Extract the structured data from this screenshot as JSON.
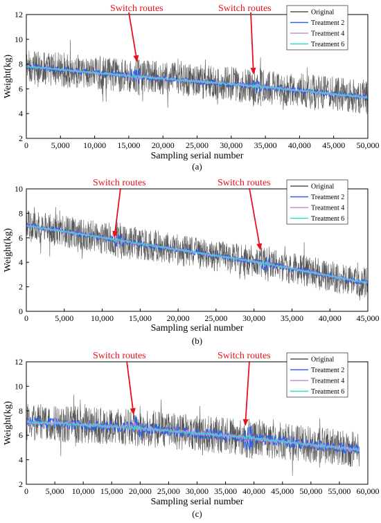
{
  "chart_data": [
    {
      "type": "line",
      "panel_label": "(a)",
      "xlabel": "Sampling serial number",
      "ylabel": "Weight(kg)",
      "xlim": [
        0,
        50000
      ],
      "ylim": [
        2,
        12
      ],
      "xticks": [
        0,
        5000,
        10000,
        15000,
        20000,
        25000,
        30000,
        35000,
        40000,
        45000,
        50000
      ],
      "xtick_labels": [
        "0",
        "5,000",
        "10,000",
        "15,000",
        "20,000",
        "25,000",
        "30,000",
        "35,000",
        "40,000",
        "45,000",
        "50,000"
      ],
      "yticks": [
        2,
        4,
        6,
        8,
        10,
        12
      ],
      "ytick_labels": [
        "2",
        "4",
        "6",
        "8",
        "10",
        "12"
      ],
      "legend": [
        "Original",
        "Treatment 2",
        "Treatment 4",
        "Treatment 6"
      ],
      "annotations": [
        {
          "text": "Switch routes",
          "x": 16000,
          "y": 8.0
        },
        {
          "text": "Switch routes",
          "x": 33800,
          "y": 6.7
        }
      ],
      "series": [
        {
          "name": "Original",
          "trend": {
            "x": [
              0,
              16000,
              34000,
              50000
            ],
            "y": [
              7.8,
              7.0,
              6.2,
              5.3
            ]
          },
          "spread": 1.4
        },
        {
          "name": "Treatment 2",
          "trend": {
            "x": [
              0,
              16000,
              34000,
              50000
            ],
            "y": [
              7.8,
              7.0,
              6.2,
              5.3
            ]
          },
          "spread": 0.25
        },
        {
          "name": "Treatment 4",
          "trend": {
            "x": [
              0,
              16000,
              34000,
              50000
            ],
            "y": [
              7.8,
              7.0,
              6.2,
              5.3
            ]
          },
          "spread": 0.12
        },
        {
          "name": "Treatment 6",
          "trend": {
            "x": [
              0,
              16000,
              34000,
              50000
            ],
            "y": [
              7.8,
              7.0,
              6.2,
              5.3
            ]
          },
          "spread": 0.06
        }
      ]
    },
    {
      "type": "line",
      "panel_label": "(b)",
      "xlabel": "Sampling serial number",
      "ylabel": "Weight(kg)",
      "xlim": [
        0,
        45000
      ],
      "ylim": [
        0,
        10
      ],
      "xticks": [
        0,
        5000,
        10000,
        15000,
        20000,
        25000,
        30000,
        35000,
        40000,
        45000
      ],
      "xtick_labels": [
        "0",
        "5,000",
        "10,000",
        "15,000",
        "20,000",
        "25,000",
        "30,000",
        "35,000",
        "40,000",
        "45,000"
      ],
      "yticks": [
        0,
        2,
        4,
        6,
        8,
        10
      ],
      "ytick_labels": [
        "0",
        "2",
        "4",
        "6",
        "8",
        "10"
      ],
      "legend": [
        "Original",
        "Treatment 2",
        "Treatment 4",
        "Treatment 6"
      ],
      "annotations": [
        {
          "text": "Switch routes",
          "x": 12200,
          "y": 6.0
        },
        {
          "text": "Switch routes",
          "x": 31500,
          "y": 5.0
        }
      ],
      "series": [
        {
          "name": "Original",
          "trend": {
            "x": [
              0,
              12200,
              31500,
              45000
            ],
            "y": [
              7.0,
              5.8,
              3.9,
              2.3
            ]
          },
          "spread": 1.3
        },
        {
          "name": "Treatment 2",
          "trend": {
            "x": [
              0,
              12200,
              31500,
              45000
            ],
            "y": [
              7.0,
              5.8,
              3.9,
              2.3
            ]
          },
          "spread": 0.25
        },
        {
          "name": "Treatment 4",
          "trend": {
            "x": [
              0,
              12200,
              31500,
              45000
            ],
            "y": [
              7.0,
              5.8,
              3.9,
              2.3
            ]
          },
          "spread": 0.12
        },
        {
          "name": "Treatment 6",
          "trend": {
            "x": [
              0,
              12200,
              31500,
              45000
            ],
            "y": [
              7.0,
              5.8,
              3.9,
              2.3
            ]
          },
          "spread": 0.06
        }
      ]
    },
    {
      "type": "line",
      "panel_label": "(c)",
      "xlabel": "Sampling serial number",
      "ylabel": "Weight(kg)",
      "xlim": [
        0,
        60000
      ],
      "ylim": [
        2,
        12
      ],
      "xticks": [
        0,
        5000,
        10000,
        15000,
        20000,
        25000,
        30000,
        35000,
        40000,
        45000,
        50000,
        55000,
        60000
      ],
      "xtick_labels": [
        "0",
        "5,000",
        "10,000",
        "15,000",
        "20,000",
        "25,000",
        "30,000",
        "35,000",
        "40,000",
        "45,000",
        "50,000",
        "55,000",
        "60,000"
      ],
      "yticks": [
        2,
        4,
        6,
        8,
        10,
        12
      ],
      "ytick_labels": [
        "2",
        "4",
        "6",
        "8",
        "10",
        "12"
      ],
      "legend": [
        "Original",
        "Treatment 2",
        "Treatment 4",
        "Treatment 6"
      ],
      "annotations": [
        {
          "text": "Switch routes",
          "x": 19500,
          "y": 7.6
        },
        {
          "text": "Switch routes",
          "x": 39000,
          "y": 6.5
        }
      ],
      "series": [
        {
          "name": "Original",
          "trend": {
            "x": [
              0,
              19500,
              39000,
              58500
            ],
            "y": [
              7.1,
              6.6,
              5.8,
              4.8
            ]
          },
          "spread": 1.5
        },
        {
          "name": "Treatment 2",
          "trend": {
            "x": [
              0,
              19500,
              39000,
              58500
            ],
            "y": [
              7.1,
              6.6,
              5.8,
              4.8
            ]
          },
          "spread": 0.45
        },
        {
          "name": "Treatment 4",
          "trend": {
            "x": [
              0,
              19500,
              39000,
              58500
            ],
            "y": [
              7.1,
              6.6,
              5.8,
              4.8
            ]
          },
          "spread": 0.2
        },
        {
          "name": "Treatment 6",
          "trend": {
            "x": [
              0,
              19500,
              39000,
              58500
            ],
            "y": [
              7.1,
              6.6,
              5.8,
              4.8
            ]
          },
          "spread": 0.08
        }
      ]
    }
  ],
  "colors": {
    "Original": "#555555",
    "Treatment 2": "#2b63ee",
    "Treatment 4": "#c98be0",
    "Treatment 6": "#35d8c4",
    "annotation": "#e8101c"
  }
}
